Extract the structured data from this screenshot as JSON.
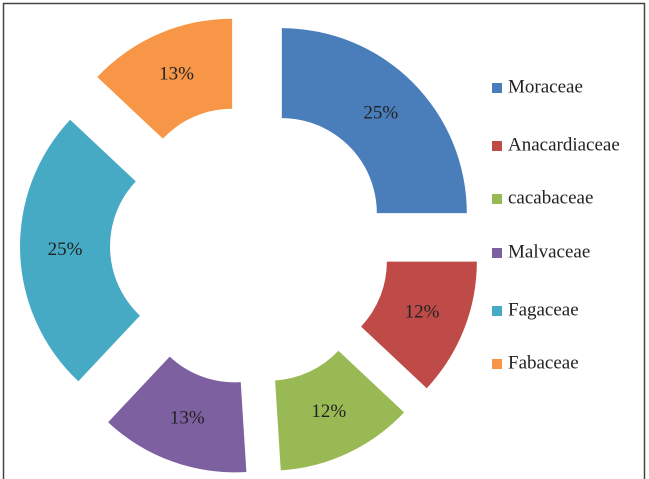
{
  "chart_data": {
    "type": "donut",
    "categories": [
      "Moraceae",
      "Anacardiaceae",
      "cacabaceae",
      "Malvaceae",
      "Fagaceae",
      "Fabaceae"
    ],
    "values": [
      25,
      12,
      12,
      13,
      25,
      13
    ],
    "value_labels": [
      "25%",
      "12%",
      "12%",
      "13%",
      "25%",
      "13%"
    ],
    "colors": [
      "#4a7ebb",
      "#be4b48",
      "#98b954",
      "#7d60a0",
      "#46aac5",
      "#f79646"
    ],
    "legend": "right"
  }
}
